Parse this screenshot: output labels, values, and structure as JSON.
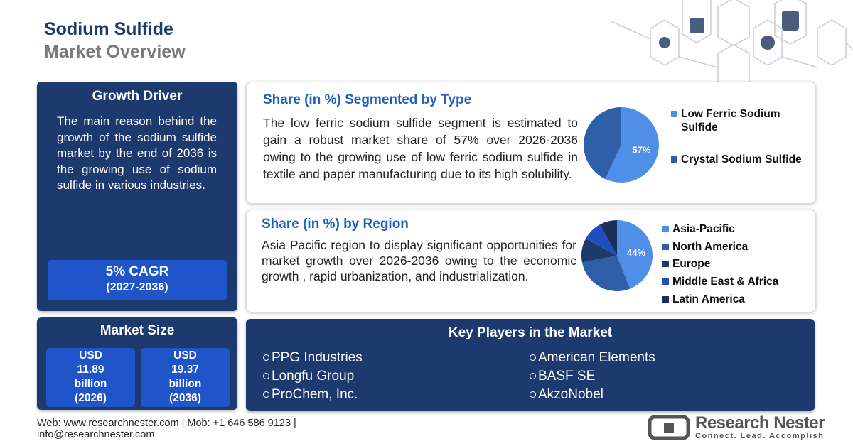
{
  "header": {
    "title": "Sodium Sulfide",
    "subtitle": "Market Overview"
  },
  "growth_driver": {
    "title": "Growth Driver",
    "text": "The main reason behind the growth of the sodium sulfide market by the end of 2036 is the growing use of sodium sulfide in various industries.",
    "cagr": "5% CAGR",
    "period": "(2027-2036)"
  },
  "market_size": {
    "title": "Market Size",
    "items": [
      [
        "USD",
        "11.89",
        "billion",
        "(2026)"
      ],
      [
        "USD",
        "19.37",
        "billion",
        "(2036)"
      ]
    ]
  },
  "type_segment": {
    "title": "Share (in %) Segmented by Type",
    "text": "The low ferric sodium sulfide segment is estimated to gain a robust market share of 57% over 2026-2036 owing to the growing use of low ferric sodium sulfide in textile and paper manufacturing due to its high solubility.",
    "chart": {
      "type": "pie",
      "categories": [
        "Low Ferric Sodium Sulfide",
        "Crystal Sodium Sulfide"
      ],
      "values": [
        57,
        43
      ],
      "value_labels": [
        "57%",
        null
      ],
      "colors": [
        "#4f8fe8",
        "#2e5fa8"
      ]
    }
  },
  "region_segment": {
    "title": "Share (in %) by Region",
    "text": "Asia Pacific region to display significant opportunities for market growth over 2026-2036 owing to the economic growth , rapid urbanization, and industrialization.",
    "chart": {
      "type": "pie",
      "categories": [
        "Asia-Pacific",
        "North America",
        "Europe",
        "Middle East & Africa",
        "Latin America"
      ],
      "values": [
        44,
        28,
        11,
        9,
        8
      ],
      "value_labels": [
        "44%",
        null,
        null,
        null,
        null
      ],
      "colors": [
        "#4f8fe8",
        "#2e5fa8",
        "#1e3a6a",
        "#1f4fbf",
        "#1a2f5a"
      ]
    }
  },
  "key_players": {
    "title": "Key Players in the Market",
    "items": [
      "PPG Industries",
      "Longfu Group",
      "ProChem, Inc.",
      "American Elements",
      "BASF SE",
      "AkzoNobel"
    ]
  },
  "footer": {
    "contact": [
      "Web: www.researchnester.com | Mob: +1 646 586 9123 |",
      "info@researchnester.com"
    ],
    "brand": "Research Nester",
    "tagline": "Connect. Lead. Accomplish"
  }
}
